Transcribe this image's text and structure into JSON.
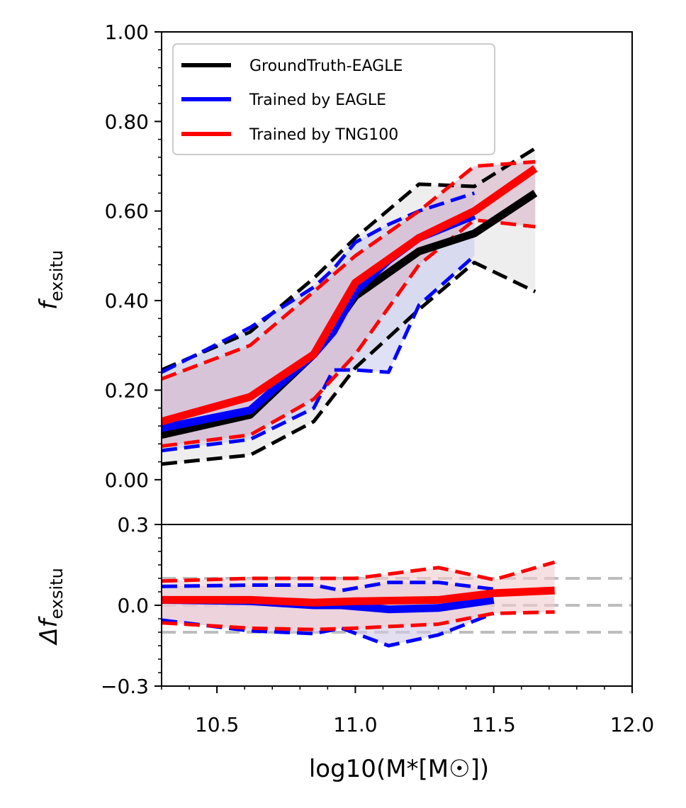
{
  "chart_data": [
    {
      "panel": "main",
      "type": "line",
      "ylabel_base": "f",
      "ylabel_sub": "exsitu",
      "ylim": [
        -0.1,
        1.0
      ],
      "xlim": [
        10.3,
        12.0
      ],
      "y_ticks": [
        0.0,
        0.2,
        0.4,
        0.6,
        0.8,
        1.0
      ],
      "y_tick_labels": [
        "0.00",
        "0.20",
        "0.40",
        "0.60",
        "0.80",
        "1.00"
      ],
      "legend": {
        "position": "top-left",
        "entries": [
          {
            "label": "GroundTruth-EAGLE",
            "color": "#000000"
          },
          {
            "label": "Trained by EAGLE",
            "color": "#0000ff"
          },
          {
            "label": "Trained by TNG100",
            "color": "#ff0000"
          }
        ]
      },
      "series": [
        {
          "name": "GroundTruth-EAGLE",
          "color": "#000000",
          "band_fill": "#e3e3e3",
          "x": [
            10.3,
            10.62,
            10.85,
            11.0,
            11.23,
            11.43,
            11.65
          ],
          "median": [
            0.1,
            0.145,
            0.28,
            0.41,
            0.51,
            0.55,
            0.64
          ],
          "upper": [
            0.245,
            0.33,
            0.45,
            0.54,
            0.66,
            0.655,
            0.74
          ],
          "lower": [
            0.035,
            0.055,
            0.13,
            0.25,
            0.38,
            0.485,
            0.42
          ]
        },
        {
          "name": "Trained by EAGLE",
          "color": "#0000ff",
          "band_fill": "#c9cdf0",
          "x": [
            10.3,
            10.62,
            10.85,
            10.92,
            11.0,
            11.12,
            11.23,
            11.43
          ],
          "median": [
            0.115,
            0.155,
            0.28,
            0.33,
            0.42,
            0.49,
            0.54,
            0.59
          ],
          "upper": [
            0.24,
            0.34,
            0.43,
            0.47,
            0.53,
            0.57,
            0.6,
            0.64
          ],
          "lower": [
            0.065,
            0.09,
            0.16,
            0.245,
            0.245,
            0.24,
            0.39,
            0.5
          ]
        },
        {
          "name": "Trained by TNG100",
          "color": "#ff0000",
          "band_fill": "#d9b5c8",
          "x": [
            10.3,
            10.62,
            10.85,
            11.0,
            11.23,
            11.43,
            11.65
          ],
          "median": [
            0.13,
            0.185,
            0.28,
            0.44,
            0.54,
            0.6,
            0.695
          ],
          "upper": [
            0.225,
            0.3,
            0.42,
            0.5,
            0.6,
            0.7,
            0.71
          ],
          "lower": [
            0.075,
            0.1,
            0.18,
            0.28,
            0.48,
            0.58,
            0.565
          ]
        }
      ]
    },
    {
      "panel": "residual",
      "type": "line",
      "xlabel": "log10(M*[M☉])",
      "ylabel_base": "Δf",
      "ylabel_sub": "exsitu",
      "ylim": [
        -0.3,
        0.3
      ],
      "xlim": [
        10.3,
        12.0
      ],
      "y_ticks": [
        -0.3,
        0.0,
        0.3
      ],
      "y_tick_labels": [
        "−0.3",
        "0.0",
        "0.3"
      ],
      "x_ticks": [
        10.5,
        11.0,
        11.5,
        12.0
      ],
      "x_tick_labels": [
        "10.5",
        "11.0",
        "11.5",
        "12.0"
      ],
      "reference_lines": [
        -0.1,
        0.0,
        0.1
      ],
      "series": [
        {
          "name": "Trained by EAGLE",
          "color": "#0000ff",
          "band_fill": "#d2c8e8",
          "x": [
            10.3,
            10.62,
            10.85,
            10.95,
            11.12,
            11.3,
            11.5
          ],
          "median": [
            0.02,
            0.015,
            0.0,
            0.0,
            -0.015,
            -0.01,
            0.02
          ],
          "upper": [
            0.07,
            0.075,
            0.075,
            0.055,
            0.085,
            0.085,
            0.06
          ],
          "lower": [
            -0.055,
            -0.095,
            -0.105,
            -0.085,
            -0.15,
            -0.11,
            -0.03
          ]
        },
        {
          "name": "Trained by TNG100",
          "color": "#ff0000",
          "band_fill": "#f2cbcf",
          "x": [
            10.3,
            10.62,
            10.85,
            11.0,
            11.3,
            11.5,
            11.72
          ],
          "median": [
            0.02,
            0.02,
            0.01,
            0.015,
            0.02,
            0.045,
            0.055
          ],
          "upper": [
            0.09,
            0.1,
            0.1,
            0.1,
            0.14,
            0.095,
            0.16
          ],
          "lower": [
            -0.065,
            -0.085,
            -0.09,
            -0.085,
            -0.07,
            -0.03,
            -0.025
          ]
        }
      ]
    }
  ]
}
